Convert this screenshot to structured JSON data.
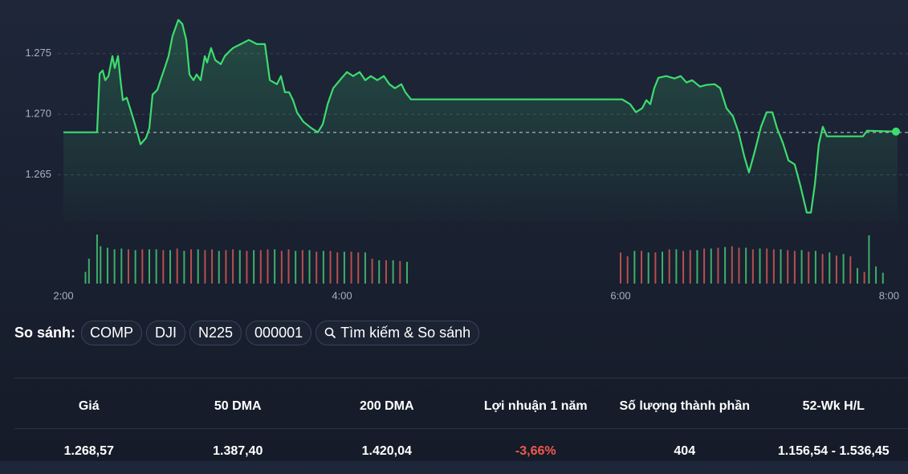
{
  "chart_data": {
    "type": "line",
    "x": [
      120,
      134.5,
      135.6,
      136.9,
      138.0,
      139.4,
      141.1,
      142.1,
      143.5,
      144.6,
      145.6,
      147.3,
      148.7,
      150.8,
      153.2,
      155.6,
      157.0,
      158.4,
      160.5,
      161.8,
      163.6,
      165.3,
      167.0,
      169.5,
      171.2,
      172.9,
      174.3,
      176.0,
      177.4,
      179.1,
      180.9,
      181.9,
      183.6,
      185.4,
      187.8,
      189.5,
      191.2,
      193.0,
      196.4,
      199.9,
      203.3,
      206.8,
      208.9,
      212.0,
      213.7,
      215.4,
      217.2,
      218.9,
      220.6,
      223.4,
      226.9,
      229.6,
      231.7,
      233.8,
      236.2,
      239.7,
      242.1,
      244.8,
      247.6,
      250.0,
      252.4,
      255.2,
      258.0,
      260.4,
      262.8,
      265.6,
      267.3,
      269.7,
      360.7,
      364.1,
      366.6,
      369.3,
      371.1,
      372.8,
      374.5,
      376.3,
      379.7,
      383.2,
      385.9,
      388.4,
      390.8,
      394.2,
      397.0,
      400.5,
      402.9,
      405.6,
      408.4,
      410.8,
      413.3,
      415.3,
      417.7,
      420.5,
      422.9,
      425.4,
      427.4,
      429.9,
      432.3,
      435.0,
      437.5,
      440.2,
      442.0,
      443.7,
      445.4,
      447.1,
      448.9,
      464.4,
      466.2,
      479.3
    ],
    "series": [
      {
        "color": "#3ddc6e",
        "values": [
          1268.51,
          1268.51,
          1273.34,
          1273.61,
          1272.81,
          1273.15,
          1274.8,
          1273.81,
          1274.8,
          1272.81,
          1271.16,
          1271.36,
          1270.5,
          1269.17,
          1267.52,
          1268.05,
          1268.84,
          1271.62,
          1272.02,
          1272.81,
          1273.81,
          1274.8,
          1276.46,
          1277.78,
          1277.45,
          1276.13,
          1273.28,
          1272.81,
          1273.28,
          1272.81,
          1274.8,
          1274.27,
          1275.46,
          1274.47,
          1274.14,
          1274.8,
          1275.13,
          1275.46,
          1275.79,
          1276.13,
          1275.79,
          1275.79,
          1272.81,
          1272.48,
          1273.15,
          1271.82,
          1271.82,
          1271.16,
          1270.17,
          1269.37,
          1268.84,
          1268.51,
          1269.17,
          1270.83,
          1272.15,
          1272.95,
          1273.48,
          1273.15,
          1273.48,
          1272.81,
          1273.15,
          1272.81,
          1273.15,
          1272.48,
          1272.15,
          1272.48,
          1271.82,
          1271.23,
          1271.23,
          1270.83,
          1270.17,
          1270.5,
          1271.16,
          1270.83,
          1272.15,
          1273.01,
          1273.15,
          1272.95,
          1273.15,
          1272.62,
          1272.81,
          1272.28,
          1272.42,
          1272.48,
          1272.15,
          1270.5,
          1269.83,
          1268.51,
          1266.52,
          1265.2,
          1266.85,
          1268.97,
          1270.17,
          1270.17,
          1268.84,
          1267.65,
          1266.19,
          1265.86,
          1264.07,
          1261.89,
          1261.89,
          1264.21,
          1267.52,
          1268.97,
          1268.18,
          1268.18,
          1268.64,
          1268.57
        ]
      }
    ],
    "reference_line": 1268.5,
    "xlim": [
      120,
      480
    ],
    "xticks": [
      {
        "value": 120,
        "label": "2:00"
      },
      {
        "value": 240,
        "label": "4:00"
      },
      {
        "value": 360,
        "label": "6:00"
      },
      {
        "value": 480,
        "label": "8:00"
      }
    ],
    "ylim": [
      1261.2,
      1278.1
    ],
    "yticks": [
      {
        "value": 1275,
        "label": "1.275"
      },
      {
        "value": 1270,
        "label": "1.270"
      },
      {
        "value": 1265,
        "label": "1.265"
      }
    ],
    "grid": true,
    "volume": {
      "vlim": [
        0,
        65
      ],
      "series": [
        {
          "color": "#3fae6a",
          "x": [
            129.5,
            131,
            134.5,
            136,
            139,
            142,
            145,
            151,
            157,
            160,
            166,
            172,
            178,
            187,
            196,
            202,
            211,
            220,
            226,
            232,
            241,
            250,
            256,
            262,
            268,
            366,
            372,
            378,
            384,
            393,
            399,
            405,
            414,
            420,
            429,
            438,
            444,
            450,
            456,
            462,
            467,
            470,
            473
          ],
          "values": [
            15,
            32,
            63,
            48,
            46,
            44,
            45,
            43,
            44,
            44,
            43,
            42,
            44,
            42,
            43,
            43,
            44,
            42,
            43,
            42,
            41,
            40,
            30,
            30,
            28,
            42,
            40,
            41,
            44,
            43,
            45,
            47,
            46,
            45,
            44,
            43,
            42,
            40,
            38,
            20,
            62,
            22,
            14
          ]
        },
        {
          "color": "#b4504f",
          "x": [
            148,
            154,
            163,
            169,
            175,
            181,
            184,
            190,
            193,
            199,
            205,
            208,
            214,
            217,
            223,
            229,
            235,
            238,
            244,
            247,
            253,
            259,
            265,
            360,
            363,
            369,
            375,
            381,
            387,
            390,
            396,
            402,
            408,
            411,
            417,
            423,
            426,
            432,
            435,
            441,
            447,
            453,
            459,
            465
          ],
          "values": [
            44,
            44,
            43,
            45,
            44,
            43,
            44,
            43,
            44,
            42,
            43,
            44,
            42,
            44,
            43,
            41,
            42,
            40,
            41,
            40,
            32,
            30,
            29,
            40,
            35,
            42,
            40,
            44,
            42,
            43,
            45,
            46,
            48,
            46,
            44,
            45,
            44,
            43,
            42,
            41,
            38,
            36,
            35,
            15
          ]
        }
      ]
    }
  },
  "compare": {
    "label": "So sánh:",
    "chips": [
      "COMP",
      "DJI",
      "N225",
      "000001"
    ],
    "search": "Tìm kiếm & So sánh"
  },
  "stats": {
    "headers": [
      "Giá",
      "50 DMA",
      "200 DMA",
      "Lợi nhuận 1 năm",
      "Số lượng thành phần",
      "52-Wk H/L"
    ],
    "values": [
      "1.268,57",
      "1.387,40",
      "1.420,04",
      "-3,66%",
      "404",
      "1.156,54 - 1.536,45"
    ],
    "negative_color": "#f0584c"
  }
}
